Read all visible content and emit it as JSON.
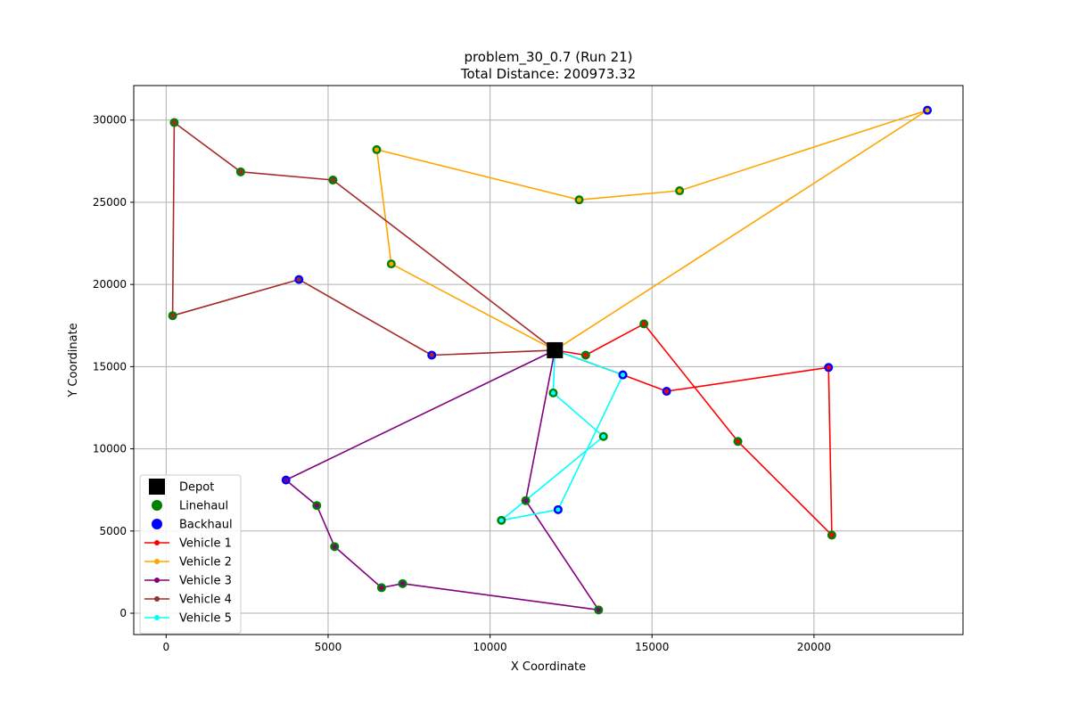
{
  "chart_data": {
    "type": "scatter",
    "title": "problem_30_0.7 (Run 21)",
    "subtitle": "Total Distance: 200973.32",
    "xlabel": "X Coordinate",
    "ylabel": "Y Coordinate",
    "xlim": [
      -1000,
      24600
    ],
    "ylim": [
      -1300,
      32100
    ],
    "xticks": [
      0,
      5000,
      10000,
      15000,
      20000
    ],
    "yticks": [
      0,
      5000,
      10000,
      15000,
      20000,
      25000,
      30000
    ],
    "grid": true,
    "legend_position": "lower-left",
    "depot": {
      "name": "Depot",
      "x": 12000,
      "y": 16000,
      "color": "#000000",
      "marker": "square"
    },
    "node_types": [
      {
        "name": "Linehaul",
        "color": "#008000"
      },
      {
        "name": "Backhaul",
        "color": "#0000ff"
      }
    ],
    "routes": [
      {
        "name": "Vehicle 1",
        "color": "#ff0000",
        "points": [
          {
            "x": 12000,
            "y": 16000,
            "type": "depot"
          },
          {
            "x": 12950,
            "y": 15700,
            "type": "Linehaul"
          },
          {
            "x": 14750,
            "y": 17600,
            "type": "Linehaul"
          },
          {
            "x": 17650,
            "y": 10450,
            "type": "Linehaul"
          },
          {
            "x": 20550,
            "y": 4750,
            "type": "Linehaul"
          },
          {
            "x": 20450,
            "y": 14950,
            "type": "Backhaul"
          },
          {
            "x": 15450,
            "y": 13500,
            "type": "Backhaul"
          },
          {
            "x": 14100,
            "y": 14500,
            "type": "Backhaul"
          },
          {
            "x": 12000,
            "y": 16000,
            "type": "depot"
          }
        ]
      },
      {
        "name": "Vehicle 2",
        "color": "#ffa500",
        "points": [
          {
            "x": 12000,
            "y": 16000,
            "type": "depot"
          },
          {
            "x": 6950,
            "y": 21250,
            "type": "Linehaul"
          },
          {
            "x": 6500,
            "y": 28200,
            "type": "Linehaul"
          },
          {
            "x": 12750,
            "y": 25150,
            "type": "Linehaul"
          },
          {
            "x": 15850,
            "y": 25700,
            "type": "Linehaul"
          },
          {
            "x": 23500,
            "y": 30600,
            "type": "Backhaul"
          },
          {
            "x": 12000,
            "y": 16000,
            "type": "depot"
          }
        ]
      },
      {
        "name": "Vehicle 3",
        "color": "#800080",
        "points": [
          {
            "x": 12000,
            "y": 16000,
            "type": "depot"
          },
          {
            "x": 11100,
            "y": 6850,
            "type": "Linehaul"
          },
          {
            "x": 13350,
            "y": 200,
            "type": "Linehaul"
          },
          {
            "x": 7300,
            "y": 1800,
            "type": "Linehaul"
          },
          {
            "x": 6650,
            "y": 1550,
            "type": "Linehaul"
          },
          {
            "x": 5200,
            "y": 4050,
            "type": "Linehaul"
          },
          {
            "x": 4650,
            "y": 6550,
            "type": "Linehaul"
          },
          {
            "x": 3700,
            "y": 8100,
            "type": "Backhaul"
          },
          {
            "x": 12000,
            "y": 16000,
            "type": "depot"
          }
        ]
      },
      {
        "name": "Vehicle 4",
        "color": "#a52a2a",
        "points": [
          {
            "x": 12000,
            "y": 16000,
            "type": "depot"
          },
          {
            "x": 5150,
            "y": 26350,
            "type": "Linehaul"
          },
          {
            "x": 2300,
            "y": 26850,
            "type": "Linehaul"
          },
          {
            "x": 250,
            "y": 29850,
            "type": "Linehaul"
          },
          {
            "x": 200,
            "y": 18100,
            "type": "Linehaul"
          },
          {
            "x": 4100,
            "y": 20300,
            "type": "Backhaul"
          },
          {
            "x": 8200,
            "y": 15700,
            "type": "Backhaul"
          },
          {
            "x": 12000,
            "y": 16000,
            "type": "depot"
          }
        ]
      },
      {
        "name": "Vehicle 5",
        "color": "#00ffff",
        "points": [
          {
            "x": 12000,
            "y": 16000,
            "type": "depot"
          },
          {
            "x": 11950,
            "y": 13400,
            "type": "Linehaul"
          },
          {
            "x": 13500,
            "y": 10750,
            "type": "Linehaul"
          },
          {
            "x": 10350,
            "y": 5650,
            "type": "Linehaul"
          },
          {
            "x": 12100,
            "y": 6300,
            "type": "Backhaul"
          },
          {
            "x": 14100,
            "y": 14500,
            "type": "Backhaul"
          },
          {
            "x": 12000,
            "y": 16000,
            "type": "depot"
          }
        ]
      }
    ]
  }
}
